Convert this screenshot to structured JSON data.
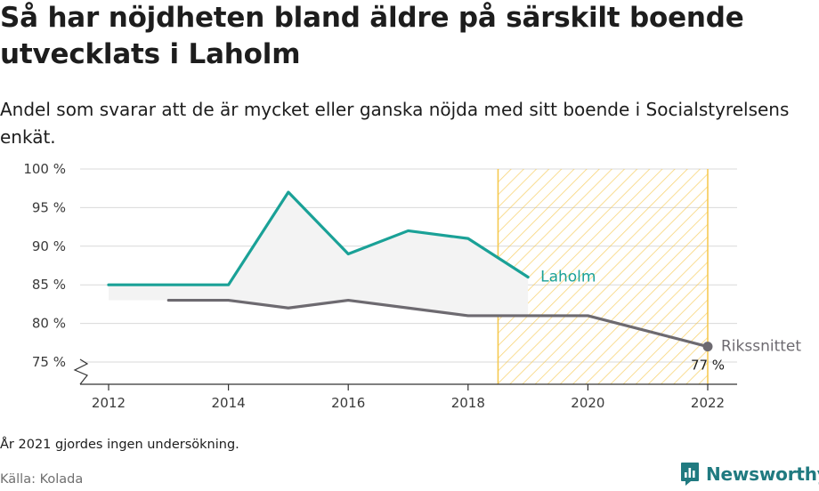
{
  "header": {
    "title": "Så har nöjdheten bland äldre på särskilt boende utvecklats i Laholm",
    "subtitle": "Andel som svarar att de är mycket eller ganska nöjda med sitt boende i Socialstyrelsens enkät."
  },
  "footer": {
    "note": "År 2021 gjordes ingen undersökning.",
    "source": "Källa: Kolada",
    "brand": "Newsworthy"
  },
  "colors": {
    "laholm": "#1aa197",
    "riket": "#6d6a70",
    "highlight": "#f5c74a",
    "area": "#f3f3f3"
  },
  "icons": {
    "brand_logo": "newsworthy-logo-icon"
  },
  "chart_data": {
    "type": "line",
    "x_ticks": [
      "2012",
      "2014",
      "2016",
      "2018",
      "2020",
      "2022"
    ],
    "y_ticks": [
      "75 %",
      "80 %",
      "85 %",
      "90 %",
      "95 %",
      "100 %"
    ],
    "xlim": [
      2012,
      2022
    ],
    "ylim": [
      75,
      100
    ],
    "y_axis_break": true,
    "highlight_range": [
      2018.5,
      2022
    ],
    "series": [
      {
        "name": "Laholm",
        "x": [
          2012,
          2013,
          2014,
          2015,
          2016,
          2017,
          2018,
          2019
        ],
        "values": [
          85,
          85,
          85,
          97,
          89,
          92,
          91,
          86
        ]
      },
      {
        "name": "Rikssnittet",
        "x": [
          2013,
          2014,
          2015,
          2016,
          2017,
          2018,
          2019,
          2020,
          2022
        ],
        "values": [
          83,
          83,
          82,
          83,
          82,
          81,
          81,
          81,
          77
        ]
      }
    ],
    "end_label": "77 %"
  }
}
